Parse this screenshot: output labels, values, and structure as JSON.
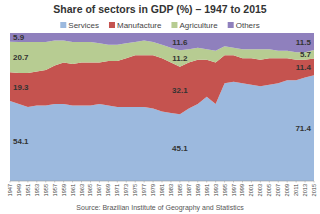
{
  "chart_data": {
    "type": "area",
    "title": "Share of sectors in GDP (%) – 1947 to 2015",
    "source": "Source: Brazilian Institute of Geography and Statistics",
    "stacked": true,
    "legend": "top",
    "tick_labels": "x",
    "data_labels": true,
    "x": [
      1947,
      1949,
      1951,
      1953,
      1955,
      1957,
      1959,
      1961,
      1963,
      1965,
      1967,
      1969,
      1971,
      1973,
      1975,
      1977,
      1979,
      1981,
      1983,
      1985,
      1987,
      1989,
      1991,
      1993,
      1995,
      1997,
      1999,
      2001,
      2003,
      2005,
      2007,
      2009,
      2011,
      2013,
      2015
    ],
    "xlim": [
      1947,
      2015
    ],
    "xticks": [
      1947,
      1949,
      1951,
      1953,
      1955,
      1957,
      1959,
      1961,
      1963,
      1965,
      1967,
      1969,
      1971,
      1973,
      1975,
      1977,
      1979,
      1981,
      1983,
      1985,
      1987,
      1989,
      1991,
      1993,
      1995,
      1997,
      1999,
      2001,
      2003,
      2005,
      2007,
      2009,
      2011,
      2013,
      2015
    ],
    "ylim": [
      0,
      100
    ],
    "series": [
      {
        "name": "Services",
        "color": "#9cb9de",
        "values": [
          54.1,
          52,
          50,
          51,
          51,
          52,
          52,
          51,
          51,
          51,
          52,
          51,
          50,
          50,
          50,
          50,
          49,
          47,
          46,
          45.1,
          49,
          52,
          57,
          52,
          66,
          67,
          66,
          65,
          64,
          65,
          66,
          68,
          68,
          70,
          71.4
        ],
        "value_labels": [
          "54.1",
          null,
          null,
          null,
          null,
          null,
          null,
          null,
          null,
          null,
          null,
          null,
          null,
          null,
          null,
          null,
          null,
          null,
          null,
          "45.1",
          null,
          null,
          null,
          null,
          null,
          null,
          null,
          null,
          null,
          null,
          null,
          null,
          null,
          null,
          "71.4"
        ]
      },
      {
        "name": "Manufacture",
        "color": "#c5534f",
        "values": [
          19.3,
          21,
          23,
          23,
          24,
          26,
          28,
          28,
          29,
          29,
          28,
          30,
          31,
          33,
          35,
          35,
          36,
          36,
          34,
          32.1,
          31,
          30,
          25,
          28,
          19,
          18,
          17,
          18,
          18,
          18,
          17,
          15,
          14,
          12,
          11.4
        ],
        "value_labels": [
          "19.3",
          null,
          null,
          null,
          null,
          null,
          null,
          null,
          null,
          null,
          null,
          null,
          null,
          null,
          null,
          null,
          null,
          null,
          null,
          "32.1",
          null,
          null,
          null,
          null,
          null,
          null,
          null,
          null,
          null,
          null,
          null,
          null,
          null,
          null,
          "11.4"
        ]
      },
      {
        "name": "Agriculture",
        "color": "#b7cc92",
        "values": [
          20.7,
          21,
          21,
          20,
          19,
          17,
          15,
          15,
          14,
          14,
          13,
          11,
          11,
          10,
          9,
          10,
          9,
          9,
          10,
          11.2,
          9,
          8,
          7,
          8,
          6,
          5,
          6,
          6,
          7,
          6,
          5,
          5,
          5,
          5,
          5.7
        ],
        "value_labels": [
          "20.7",
          null,
          null,
          null,
          null,
          null,
          null,
          null,
          null,
          null,
          null,
          null,
          null,
          null,
          null,
          null,
          null,
          null,
          null,
          "11.2",
          null,
          null,
          null,
          null,
          null,
          null,
          null,
          null,
          null,
          null,
          null,
          null,
          null,
          null,
          "5.7"
        ]
      },
      {
        "name": "Others",
        "color": "#8f80bd",
        "values": [
          5.9,
          6,
          6,
          6,
          6,
          5,
          5,
          6,
          6,
          6,
          7,
          8,
          8,
          7,
          6,
          5,
          6,
          8,
          10,
          11.6,
          11,
          10,
          11,
          12,
          9,
          10,
          11,
          11,
          11,
          11,
          12,
          12,
          13,
          13,
          11.5
        ],
        "value_labels": [
          "5.9",
          null,
          null,
          null,
          null,
          null,
          null,
          null,
          null,
          null,
          null,
          null,
          null,
          null,
          null,
          null,
          null,
          null,
          null,
          "11.6",
          null,
          null,
          null,
          null,
          null,
          null,
          null,
          null,
          null,
          null,
          null,
          null,
          null,
          null,
          "11.5"
        ]
      }
    ]
  }
}
